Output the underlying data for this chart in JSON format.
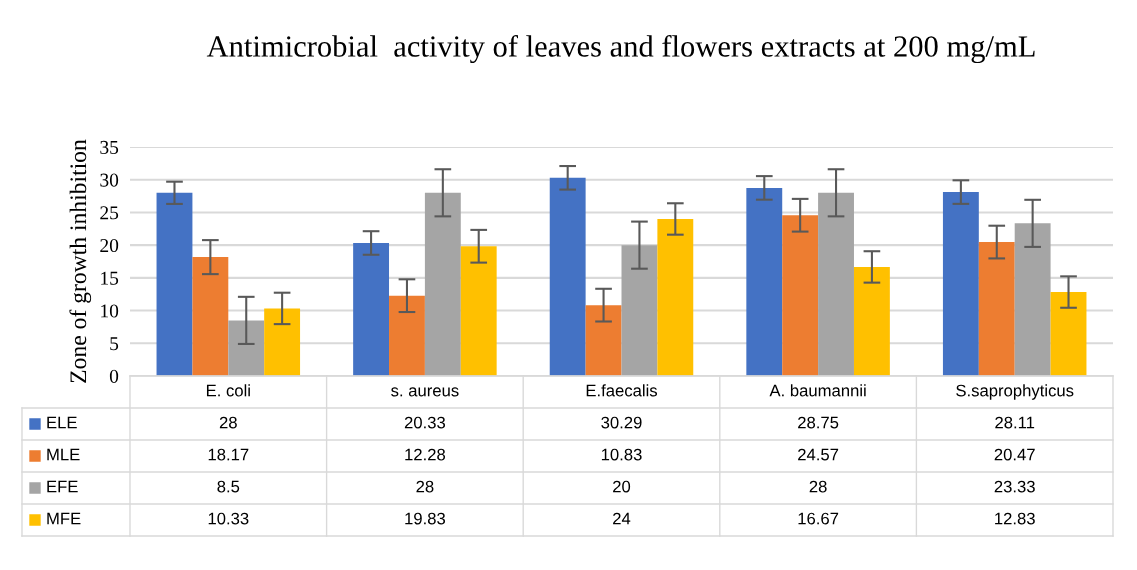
{
  "chart_data": {
    "type": "bar",
    "title": "Antimicrobial  activity of leaves and flowers extracts at 200 mg/mL",
    "ylabel": "Zone of growth inhibition",
    "categories": [
      "E. coli",
      "s. aureus",
      "E.faecalis",
      "A. baumannii",
      "S.saprophyticus"
    ],
    "series": [
      {
        "name": "ELE",
        "color": "#4472c4",
        "values": [
          28,
          20.33,
          30.29,
          28.75,
          28.11
        ],
        "errors": [
          1.7,
          1.8,
          1.8,
          1.8,
          1.8
        ]
      },
      {
        "name": "MLE",
        "color": "#ed7d31",
        "values": [
          18.17,
          12.28,
          10.83,
          24.57,
          20.47
        ],
        "errors": [
          2.6,
          2.5,
          2.5,
          2.5,
          2.5
        ]
      },
      {
        "name": "EFE",
        "color": "#a5a5a5",
        "values": [
          8.5,
          28,
          20,
          28,
          23.33
        ],
        "errors": [
          3.6,
          3.6,
          3.6,
          3.6,
          3.6
        ]
      },
      {
        "name": "MFE",
        "color": "#ffc000",
        "values": [
          10.33,
          19.83,
          24,
          16.67,
          12.83
        ],
        "errors": [
          2.4,
          2.5,
          2.4,
          2.4,
          2.4
        ]
      }
    ],
    "ylim": [
      0,
      35
    ],
    "yticks": [
      0,
      5,
      10,
      15,
      20,
      25,
      30,
      35
    ],
    "grid": "y",
    "legend": "bottom",
    "data_labels": true
  }
}
